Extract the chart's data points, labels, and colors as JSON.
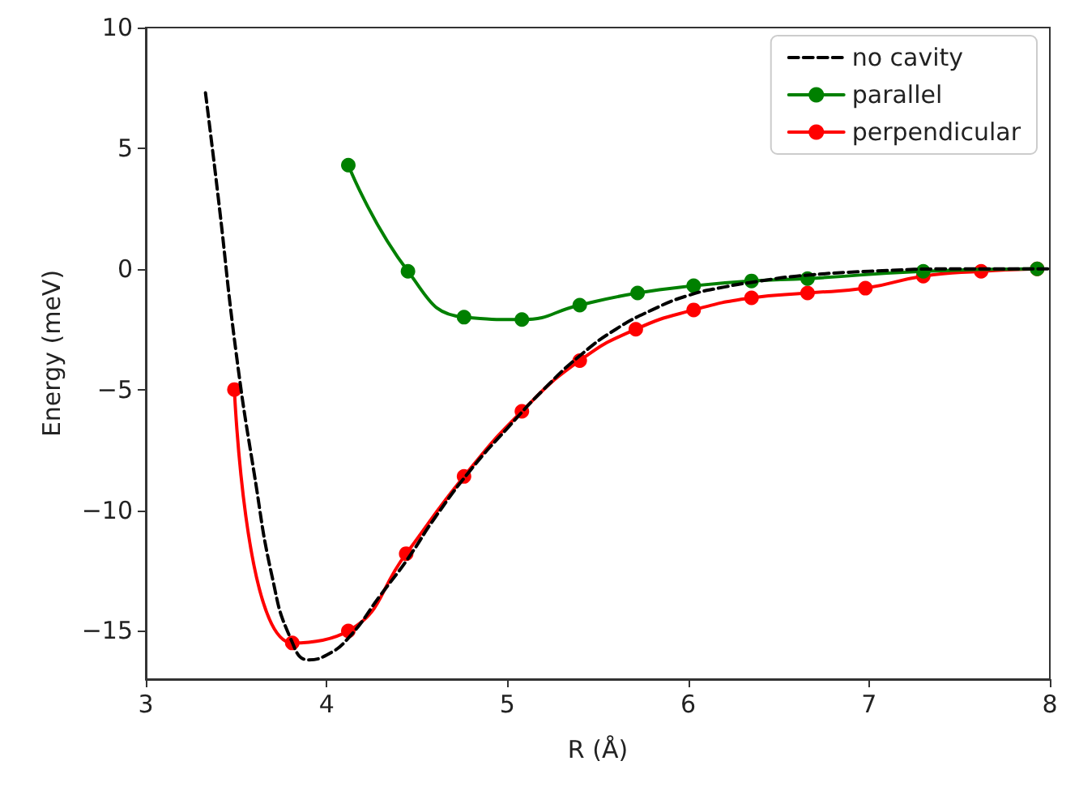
{
  "chart_data": {
    "type": "line",
    "xlabel": "R (Å)",
    "ylabel": "Energy (meV)",
    "xlim": [
      3,
      8
    ],
    "xticks": [
      3,
      4,
      5,
      6,
      7,
      8
    ],
    "ylim": [
      -17,
      10
    ],
    "yticks": [
      {
        "value": -15,
        "label": "−15"
      },
      {
        "value": -10,
        "label": "−10"
      },
      {
        "value": -5,
        "label": "−5"
      },
      0,
      5,
      10
    ],
    "grid": false,
    "legend": "top right",
    "marker": "circle",
    "series": [
      {
        "name": "no cavity",
        "color": "#000000",
        "line_style": "dashed",
        "marker": "none",
        "x": [
          3.33,
          3.4,
          3.5,
          3.6,
          3.7,
          3.8,
          3.9,
          4.0,
          4.12,
          4.3,
          4.45,
          4.6,
          4.8,
          5.0,
          5.2,
          5.4,
          5.6,
          5.8,
          6.0,
          6.2,
          6.4,
          6.6,
          7.0,
          7.5,
          8.0
        ],
        "values": [
          7.3,
          3,
          -3.5,
          -8.5,
          -12.8,
          -15.3,
          -16.2,
          -16.0,
          -15.3,
          -13.5,
          -12.0,
          -10.3,
          -8.3,
          -6.6,
          -5.0,
          -3.6,
          -2.5,
          -1.7,
          -1.1,
          -0.75,
          -0.5,
          -0.3,
          -0.1,
          0,
          0
        ]
      },
      {
        "name": "parallel",
        "color": "#008000",
        "x": [
          4.12,
          4.45,
          4.76,
          5.08,
          5.4,
          5.72,
          6.03,
          6.35,
          6.66,
          6.98,
          7.3,
          7.62,
          7.93
        ],
        "values": [
          4.3,
          -0.1,
          -2.0,
          -2.1,
          -1.5,
          -1.0,
          -0.7,
          -0.5,
          -0.4,
          null,
          -0.1,
          null,
          0
        ]
      },
      {
        "name": "perpendicular",
        "color": "#ff0000",
        "x": [
          3.49,
          3.81,
          4.12,
          4.44,
          4.76,
          5.08,
          5.4,
          5.71,
          6.03,
          6.35,
          6.66,
          6.98,
          7.3,
          7.62,
          7.93
        ],
        "values": [
          -5.0,
          -15.5,
          -15.0,
          -11.8,
          -8.6,
          -5.9,
          -3.8,
          -2.5,
          -1.7,
          -1.2,
          -1.0,
          -0.8,
          -0.3,
          -0.1,
          0
        ]
      }
    ]
  }
}
